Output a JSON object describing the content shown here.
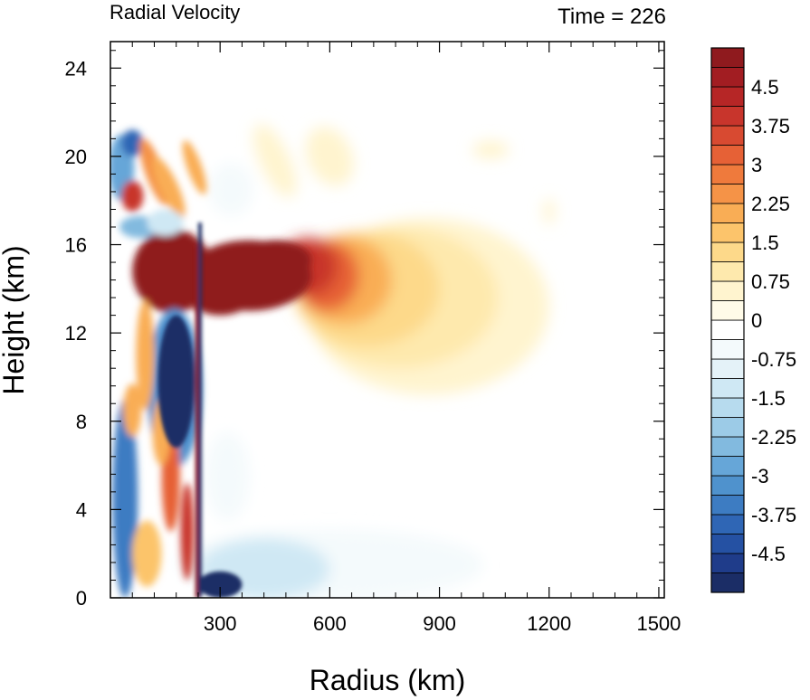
{
  "chart_data": {
    "type": "heatmap",
    "title_left": "Radial Velocity",
    "title_right": "Time = 226",
    "xlabel": "Radius (km)",
    "ylabel": "Height (km)",
    "xlim": [
      0,
      1515
    ],
    "ylim": [
      0,
      25.2
    ],
    "x_ticks": [
      300,
      600,
      900,
      1200,
      1500
    ],
    "y_ticks": [
      0,
      4,
      8,
      12,
      16,
      20,
      24
    ],
    "colorbar": {
      "labels": [
        "4.5",
        "3.75",
        "3",
        "2.25",
        "1.5",
        "0.75",
        "0",
        "-0.75",
        "-1.5",
        "-2.25",
        "-3",
        "-3.75",
        "-4.5"
      ],
      "label_values": [
        4.5,
        3.75,
        3,
        2.25,
        1.5,
        0.75,
        0,
        -0.75,
        -1.5,
        -2.25,
        -3,
        -3.75,
        -4.5
      ],
      "levels_min": -5.25,
      "levels_max": 5.25,
      "level_step": 0.25,
      "colors": [
        "#1b2d66",
        "#1f3c8a",
        "#2551a3",
        "#2f66b5",
        "#3d7cc2",
        "#4f92cd",
        "#66a6d8",
        "#82badf",
        "#9ccbe7",
        "#b7dbee",
        "#cfe8f4",
        "#e4f2f8",
        "#f4fafc",
        "#ffffff",
        "#fffbe8",
        "#fff4cf",
        "#fee9ad",
        "#fdd98a",
        "#fcc46b",
        "#f9ad55",
        "#f59347",
        "#ef7a3c",
        "#e66136",
        "#d84a31",
        "#c8352c",
        "#b62626",
        "#a21d22",
        "#8f1a1e"
      ]
    },
    "features": [
      {
        "name": "upper-level outflow",
        "sign": "positive",
        "x_range": [
          30,
          1100
        ],
        "height_range": [
          11,
          17
        ],
        "max_value": 5.25
      },
      {
        "name": "upper inflow core",
        "sign": "negative",
        "x_range": [
          90,
          230
        ],
        "height_range": [
          5,
          13
        ],
        "min_value": -5.25
      },
      {
        "name": "low-level inflow",
        "sign": "negative",
        "x_range": [
          240,
          1050
        ],
        "height_range": [
          0,
          3
        ],
        "min_value": -5.25
      },
      {
        "name": "eyewall ring",
        "sign": "mixed",
        "x_range": [
          240,
          255
        ],
        "height_range": [
          0,
          17
        ]
      }
    ]
  }
}
